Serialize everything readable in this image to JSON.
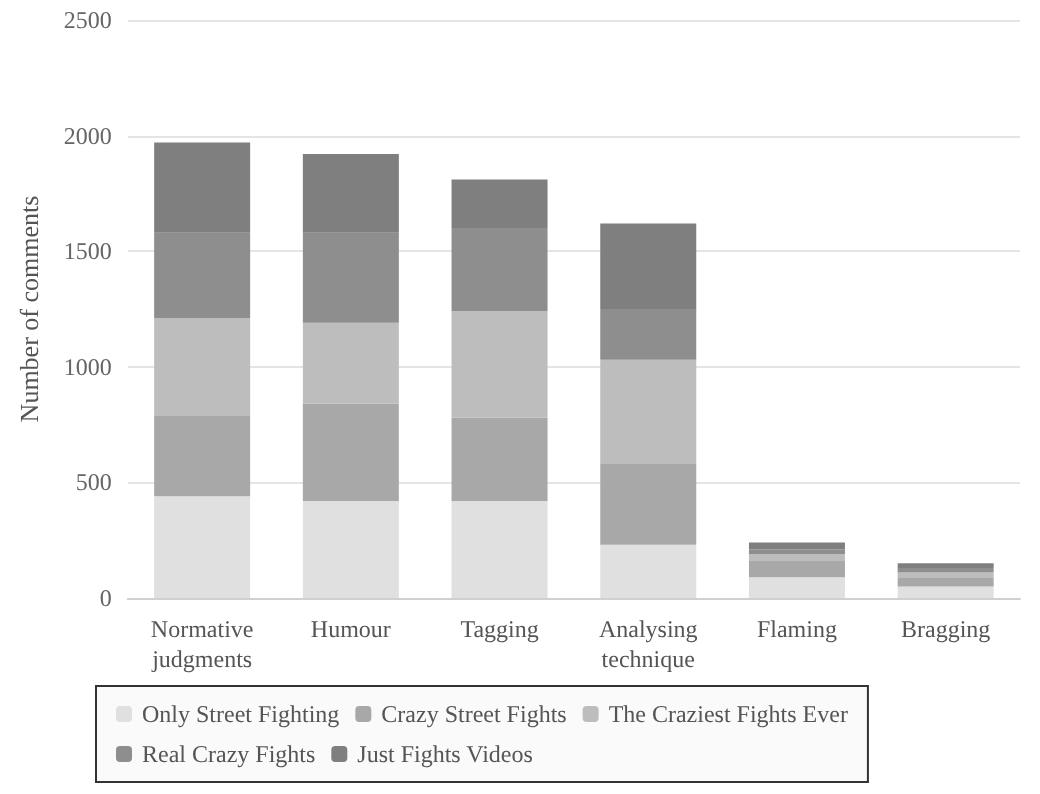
{
  "chart_data": {
    "type": "bar",
    "stacked": true,
    "ylabel": "Number of comments",
    "categories": [
      "Normative judgments",
      "Humour",
      "Tagging",
      "Analysing technique",
      "Flaming",
      "Bragging"
    ],
    "series": [
      {
        "name": "Only Street Fighting",
        "color": "#e0e0e0",
        "values": [
          440,
          420,
          420,
          230,
          90,
          50
        ]
      },
      {
        "name": "Crazy Street Fights",
        "color": "#a8a8a8",
        "values": [
          350,
          420,
          360,
          350,
          70,
          40
        ]
      },
      {
        "name": "The Craziest Fights Ever",
        "color": "#bdbdbd",
        "values": [
          420,
          350,
          460,
          450,
          30,
          20
        ]
      },
      {
        "name": "Real Crazy Fights",
        "color": "#8e8e8e",
        "values": [
          370,
          390,
          360,
          220,
          20,
          20
        ]
      },
      {
        "name": "Just Fights Videos",
        "color": "#7f7f7f",
        "values": [
          390,
          340,
          210,
          370,
          30,
          20
        ]
      }
    ],
    "ylim": [
      0,
      2500
    ],
    "yticks": [
      0,
      500,
      1000,
      1500,
      2000,
      2500
    ],
    "grid": "y",
    "legend": "bottom"
  }
}
